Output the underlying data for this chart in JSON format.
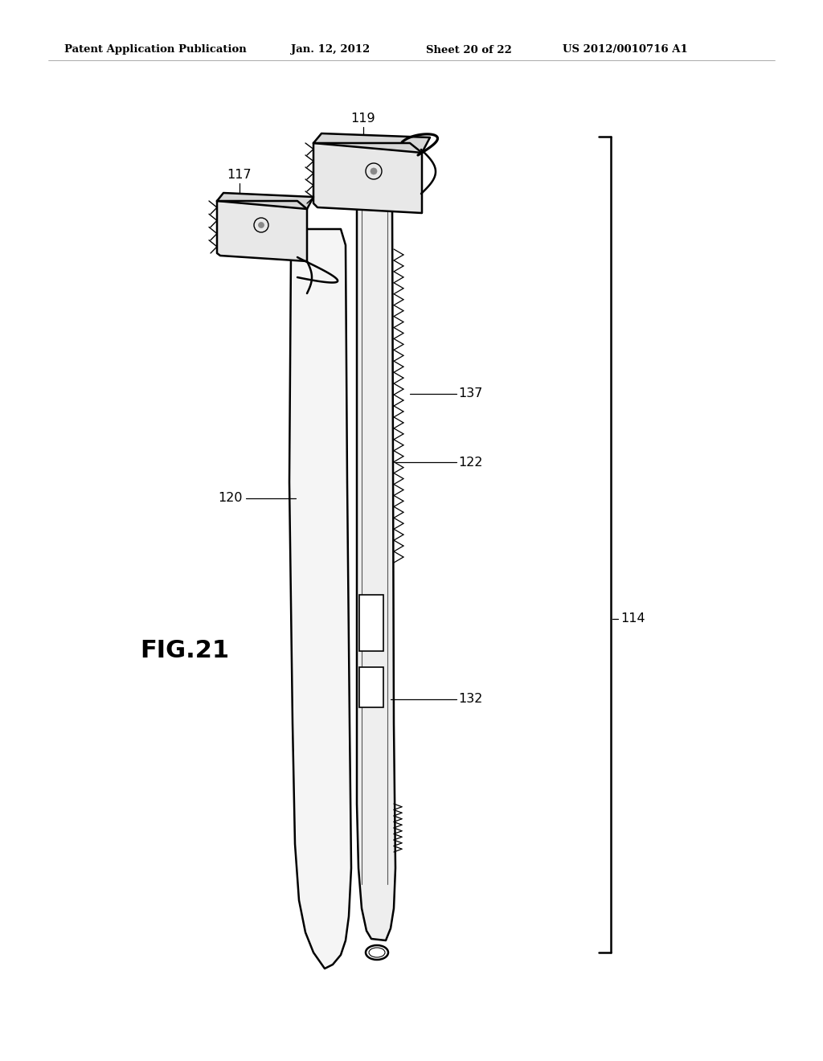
{
  "bg_color": "#ffffff",
  "line_color": "#000000",
  "header_text": "Patent Application Publication",
  "header_date": "Jan. 12, 2012",
  "header_sheet": "Sheet 20 of 22",
  "header_patent": "US 2012/0010716 A1",
  "fig_label": "FIG.21"
}
